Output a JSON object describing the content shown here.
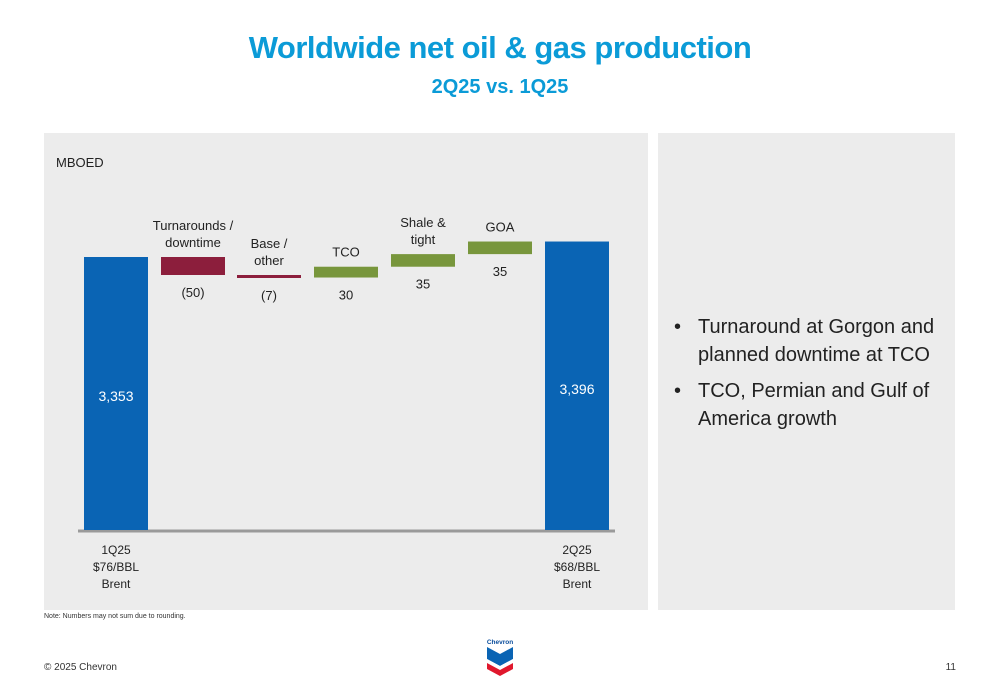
{
  "header": {
    "title": "Worldwide net oil & gas production",
    "subtitle": "2Q25 vs. 1Q25"
  },
  "chart_data": {
    "type": "waterfall",
    "unit_label": "MBOED",
    "colors": {
      "total": "#0a64b4",
      "negative": "#8c1e3c",
      "positive": "#78963c",
      "axis": "#9a9a9a"
    },
    "start": {
      "value": 3353,
      "value_label": "3,353",
      "label_lines": [
        "1Q25",
        "$76/BBL",
        "Brent"
      ]
    },
    "steps": [
      {
        "label_lines": [
          "Turnarounds /",
          "downtime"
        ],
        "value": -50,
        "value_label": "(50)"
      },
      {
        "label_lines": [
          "Base /",
          "other"
        ],
        "value": -7,
        "value_label": "(7)"
      },
      {
        "label_lines": [
          "TCO"
        ],
        "value": 30,
        "value_label": "30"
      },
      {
        "label_lines": [
          "Shale &",
          "tight"
        ],
        "value": 35,
        "value_label": "35"
      },
      {
        "label_lines": [
          "GOA"
        ],
        "value": 35,
        "value_label": "35"
      }
    ],
    "end": {
      "value": 3396,
      "value_label": "3,396",
      "label_lines": [
        "2Q25",
        "$68/BBL",
        "Brent"
      ]
    }
  },
  "sidebar": {
    "bullets": [
      "Turnaround at Gorgon and planned downtime at TCO",
      "TCO, Permian and Gulf of America growth"
    ]
  },
  "footer": {
    "note": "Note: Numbers may not sum due to rounding.",
    "copyright": "© 2025 Chevron",
    "page_number": "11",
    "logo_text": "Chevron"
  }
}
